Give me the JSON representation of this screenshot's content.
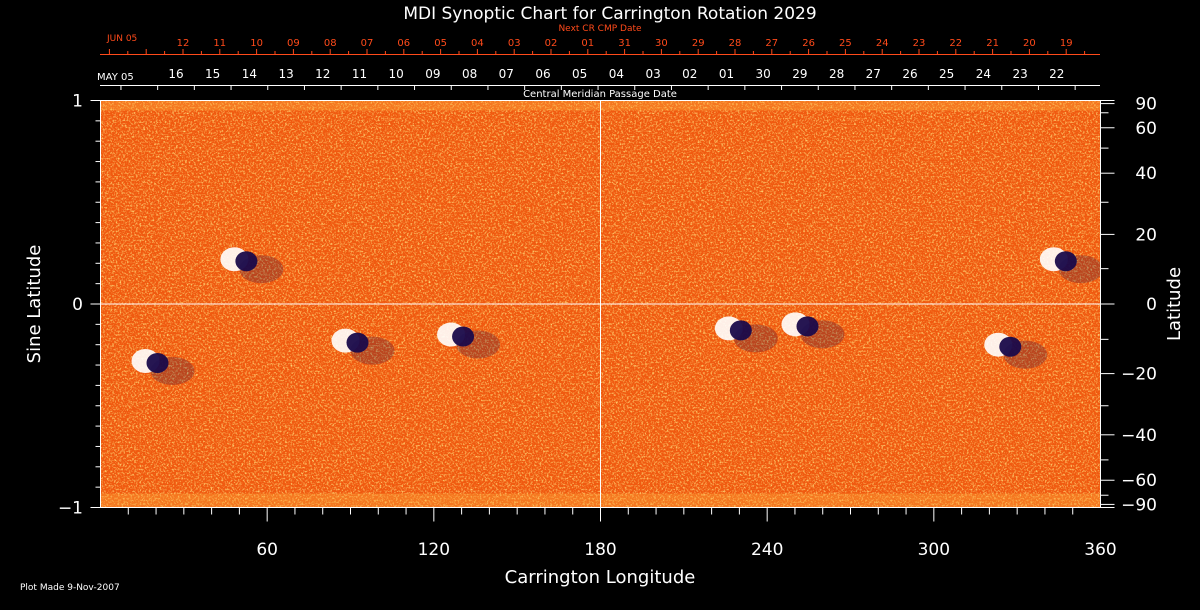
{
  "chart_data": {
    "type": "heatmap",
    "title": "MDI Synoptic Chart for Carrington Rotation 2029",
    "xlabel": "Carrington Longitude",
    "ylabel_left": "Sine Latitude",
    "ylabel_right": "Latitude",
    "xlim": [
      0,
      360
    ],
    "ylim": [
      -1,
      1
    ],
    "x_ticks": [
      60,
      120,
      180,
      240,
      300,
      360
    ],
    "y_ticks_left": [
      {
        "value": 1,
        "label": "1"
      },
      {
        "value": 0,
        "label": "0"
      },
      {
        "value": -1,
        "label": "−1"
      }
    ],
    "y_ticks_right": [
      {
        "lat": 90,
        "label": "90"
      },
      {
        "lat": 60,
        "label": "60"
      },
      {
        "lat": 40,
        "label": "40"
      },
      {
        "lat": 20,
        "label": "20"
      },
      {
        "lat": 0,
        "label": "0"
      },
      {
        "lat": -20,
        "label": "−20"
      },
      {
        "lat": -40,
        "label": "−40"
      },
      {
        "lat": -60,
        "label": "−60"
      },
      {
        "lat": -90,
        "label": "−90"
      }
    ],
    "next_cr_axis": {
      "title": "Next CR CMP Date",
      "month_label": "JUN 05",
      "labels": [
        "12",
        "11",
        "10",
        "09",
        "08",
        "07",
        "06",
        "05",
        "04",
        "03",
        "02",
        "01",
        "31",
        "30",
        "29",
        "28",
        "27",
        "26",
        "25",
        "24",
        "23",
        "22",
        "21",
        "20",
        "19"
      ]
    },
    "cmp_axis": {
      "title": "Central Meridian Passage Date",
      "month_label": "MAY 05",
      "labels": [
        "16",
        "15",
        "14",
        "13",
        "12",
        "11",
        "10",
        "09",
        "08",
        "07",
        "06",
        "05",
        "04",
        "03",
        "02",
        "01",
        "30",
        "29",
        "28",
        "27",
        "26",
        "25",
        "24",
        "23",
        "22"
      ]
    },
    "active_regions": [
      {
        "lon": 50,
        "sinlat": 0.22,
        "polarity": "mixed"
      },
      {
        "lon": 18,
        "sinlat": -0.28,
        "polarity": "mixed"
      },
      {
        "lon": 90,
        "sinlat": -0.18,
        "polarity": "mixed"
      },
      {
        "lon": 128,
        "sinlat": -0.15,
        "polarity": "mixed"
      },
      {
        "lon": 228,
        "sinlat": -0.12,
        "polarity": "mixed"
      },
      {
        "lon": 252,
        "sinlat": -0.1,
        "polarity": "mixed"
      },
      {
        "lon": 325,
        "sinlat": -0.2,
        "polarity": "mixed"
      },
      {
        "lon": 345,
        "sinlat": 0.22,
        "polarity": "mixed"
      }
    ],
    "colors": {
      "background": "#000000",
      "map_base": "#f05a10",
      "positive": "#ffffff",
      "negative": "#1a0a4a",
      "axis": "#ffffff",
      "next_cr_axis": "#ff4a1a"
    }
  },
  "footer": {
    "plot_made": "Plot Made  9-Nov-2007"
  }
}
